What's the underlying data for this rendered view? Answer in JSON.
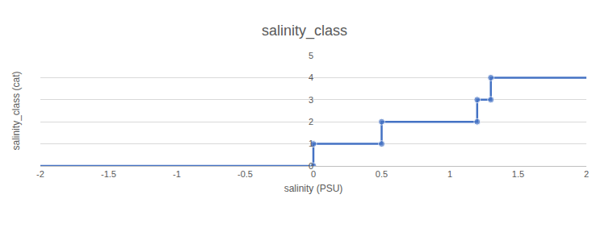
{
  "chart_data": {
    "type": "line",
    "title": "salinity_class",
    "x_label": "salinity (PSU)",
    "y_label": "salinity_class (cat)",
    "x": [
      -2,
      0,
      0,
      0.5,
      0.5,
      1.2,
      1.2,
      1.3,
      1.3,
      2
    ],
    "values": [
      0,
      0,
      1,
      1,
      2,
      2,
      3,
      3,
      4,
      4
    ],
    "color": "#4472c4",
    "marker": "circle",
    "xlim": [
      -2,
      2
    ],
    "xticks": [
      -2,
      -1.5,
      -1,
      -0.5,
      0,
      0.5,
      1,
      1.5,
      2
    ],
    "ylim": [
      0,
      5
    ],
    "yticks": [
      0,
      1,
      2,
      3,
      4,
      5
    ],
    "grid": true
  }
}
